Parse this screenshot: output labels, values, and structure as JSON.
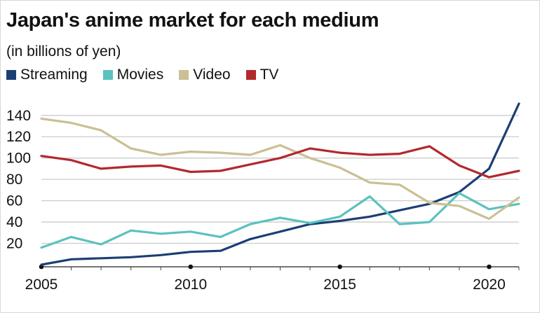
{
  "title": "Japan's anime market for each medium",
  "subtitle": "(in billions of yen)",
  "legend": [
    {
      "name": "Streaming",
      "color": "#1b3f73"
    },
    {
      "name": "Movies",
      "color": "#5bc2bf"
    },
    {
      "name": "Video",
      "color": "#cbbf93"
    },
    {
      "name": "TV",
      "color": "#b2292e"
    }
  ],
  "chart_data": {
    "type": "line",
    "x": [
      2005,
      2006,
      2007,
      2008,
      2009,
      2010,
      2011,
      2012,
      2013,
      2014,
      2015,
      2016,
      2017,
      2018,
      2019,
      2020,
      2021
    ],
    "series": [
      {
        "name": "Streaming",
        "color": "#1b3f73",
        "values": [
          0,
          5,
          6,
          7,
          9,
          12,
          13,
          24,
          31,
          38,
          41,
          45,
          51,
          57,
          68,
          90,
          151
        ]
      },
      {
        "name": "Movies",
        "color": "#5bc2bf",
        "values": [
          16,
          26,
          19,
          32,
          29,
          31,
          26,
          38,
          44,
          39,
          45,
          64,
          38,
          40,
          67,
          52,
          57
        ]
      },
      {
        "name": "Video",
        "color": "#cbbf93",
        "values": [
          137,
          133,
          126,
          109,
          103,
          106,
          105,
          103,
          112,
          100,
          91,
          77,
          75,
          58,
          55,
          43,
          63
        ]
      },
      {
        "name": "TV",
        "color": "#b2292e",
        "values": [
          102,
          98,
          90,
          92,
          93,
          87,
          88,
          94,
          100,
          109,
          105,
          103,
          104,
          111,
          93,
          82,
          88
        ]
      }
    ],
    "yticks": [
      20,
      40,
      60,
      80,
      100,
      120,
      140
    ],
    "xticks": [
      2005,
      2010,
      2015,
      2020
    ],
    "ylim": [
      -2,
      153
    ],
    "xlim": [
      2005,
      2021
    ],
    "grid": true,
    "legend_position": "top-left"
  }
}
